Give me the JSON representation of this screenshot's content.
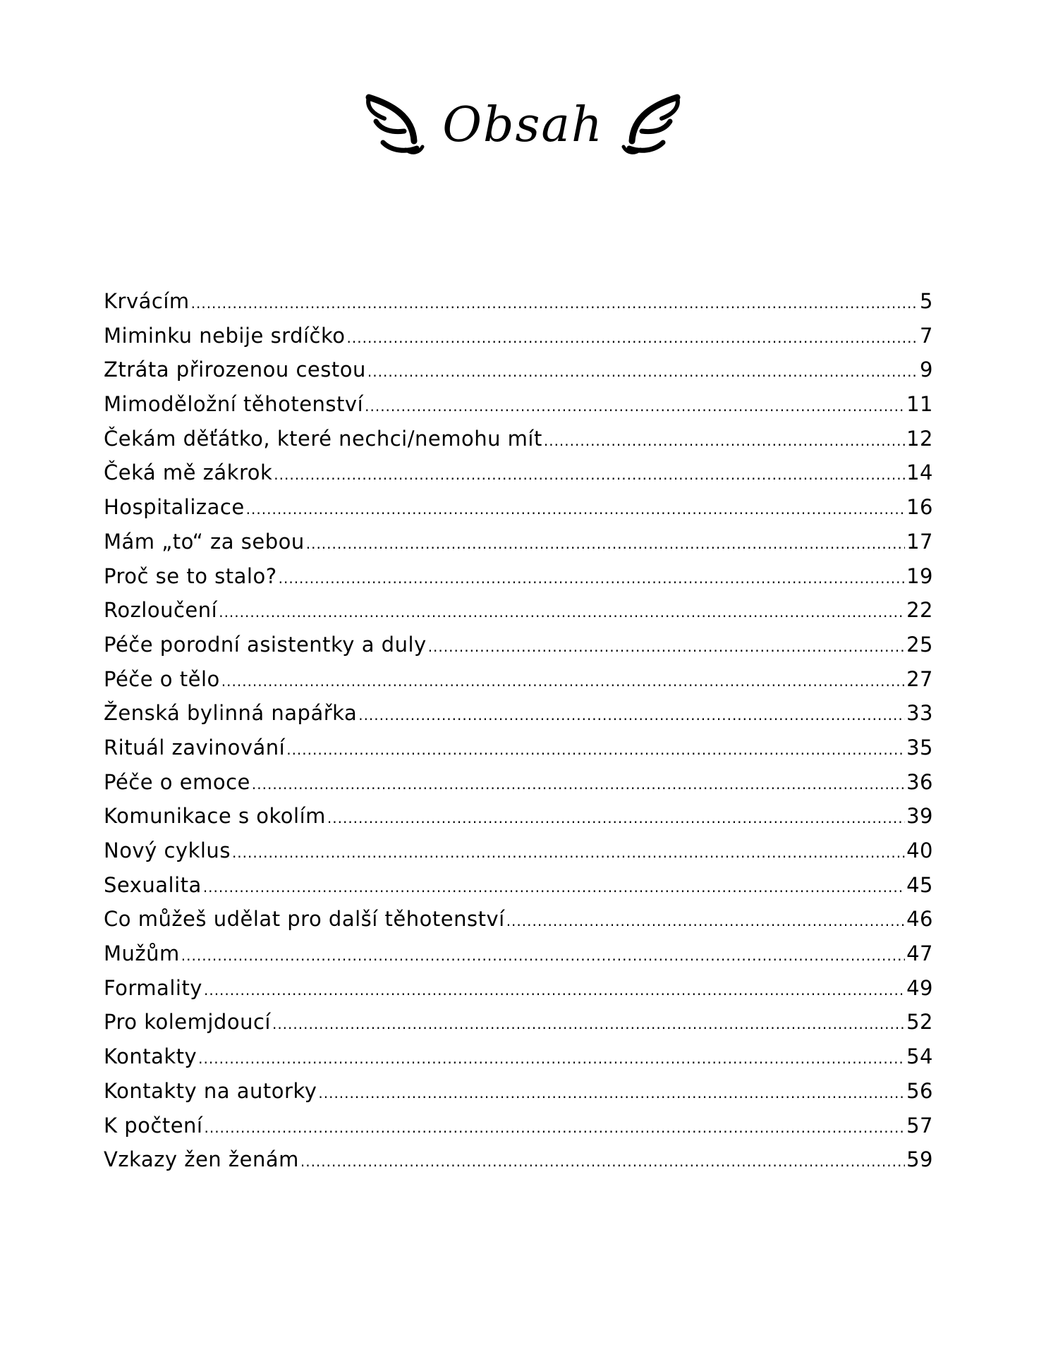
{
  "title": "Obsah",
  "icons": {
    "left": "angel-wing-icon",
    "right": "angel-wing-icon"
  },
  "entries": [
    {
      "label": "Krvácím",
      "page": "5"
    },
    {
      "label": "Miminku nebije srdíčko",
      "page": "7"
    },
    {
      "label": "Ztráta přirozenou cestou",
      "page": "9"
    },
    {
      "label": "Mimoděložní těhotenství",
      "page": "11"
    },
    {
      "label": "Čekám děťátko, které nechci/nemohu mít",
      "page": "12"
    },
    {
      "label": "Čeká mě zákrok",
      "page": "14"
    },
    {
      "label": "Hospitalizace",
      "page": "16"
    },
    {
      "label": "Mám „to“ za sebou",
      "page": "17"
    },
    {
      "label": "Proč se to stalo?",
      "page": "19"
    },
    {
      "label": "Rozloučení",
      "page": "22"
    },
    {
      "label": "Péče porodní asistentky a duly",
      "page": "25"
    },
    {
      "label": "Péče o tělo",
      "page": "27"
    },
    {
      "label": "Ženská bylinná napářka",
      "page": "33"
    },
    {
      "label": "Rituál zavinování",
      "page": "35"
    },
    {
      "label": "Péče o emoce",
      "page": "36"
    },
    {
      "label": "Komunikace s okolím",
      "page": "39"
    },
    {
      "label": "Nový cyklus",
      "page": "40"
    },
    {
      "label": "Sexualita",
      "page": "45"
    },
    {
      "label": "Co můžeš udělat pro další těhotenství",
      "page": "46"
    },
    {
      "label": "Mužům",
      "page": "47"
    },
    {
      "label": "Formality",
      "page": "49"
    },
    {
      "label": "Pro kolemjdoucí",
      "page": "52"
    },
    {
      "label": "Kontakty",
      "page": "54"
    },
    {
      "label": "Kontakty na autorky",
      "page": "56"
    },
    {
      "label": "K počtení",
      "page": "57"
    },
    {
      "label": "Vzkazy žen ženám",
      "page": "59"
    }
  ]
}
